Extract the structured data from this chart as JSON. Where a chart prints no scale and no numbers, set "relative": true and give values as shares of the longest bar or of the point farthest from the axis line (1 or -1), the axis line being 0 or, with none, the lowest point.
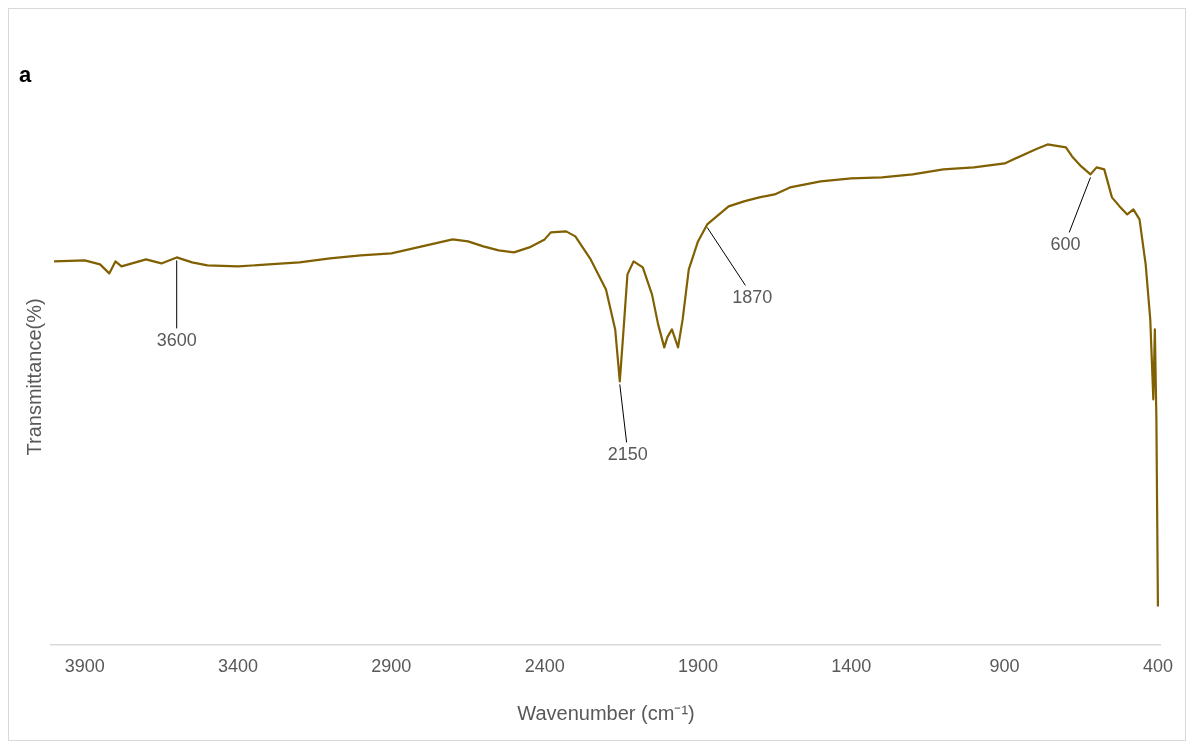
{
  "chart_data": {
    "type": "line",
    "title": "a",
    "xlabel": "Wavenumber (cm⁻¹)",
    "ylabel": "Transmittance(%)",
    "relative": true,
    "xlim": [
      4010,
      390
    ],
    "xticks": [
      3900,
      3400,
      2900,
      2400,
      1900,
      1400,
      900,
      400
    ],
    "grid": false,
    "legend": false,
    "marker": "none",
    "annotations": [
      {
        "text": "3600",
        "x": 3600,
        "y": 0.774
      },
      {
        "text": "2150",
        "x": 2155,
        "y": 0.526
      },
      {
        "text": "1870",
        "x": 1870,
        "y": 0.84
      },
      {
        "text": "600",
        "x": 620,
        "y": 0.94
      }
    ],
    "series": [
      {
        "color": "#806000",
        "x": [
          4000,
          3900,
          3850,
          3820,
          3800,
          3780,
          3700,
          3650,
          3600,
          3550,
          3500,
          3400,
          3300,
          3200,
          3100,
          3000,
          2900,
          2800,
          2700,
          2650,
          2600,
          2550,
          2500,
          2450,
          2400,
          2380,
          2330,
          2300,
          2250,
          2200,
          2170,
          2155,
          2145,
          2130,
          2110,
          2080,
          2050,
          2030,
          2010,
          2000,
          1985,
          1965,
          1950,
          1930,
          1900,
          1870,
          1800,
          1750,
          1700,
          1650,
          1600,
          1500,
          1400,
          1300,
          1200,
          1100,
          1000,
          900,
          800,
          760,
          700,
          680,
          650,
          620,
          600,
          575,
          550,
          525,
          500,
          480,
          460,
          440,
          425,
          415,
          410,
          405,
          400
        ],
        "values": [
          0.766,
          0.768,
          0.76,
          0.742,
          0.766,
          0.756,
          0.77,
          0.762,
          0.774,
          0.764,
          0.758,
          0.756,
          0.76,
          0.764,
          0.772,
          0.778,
          0.782,
          0.796,
          0.81,
          0.806,
          0.796,
          0.788,
          0.784,
          0.794,
          0.81,
          0.824,
          0.826,
          0.816,
          0.77,
          0.71,
          0.63,
          0.526,
          0.61,
          0.74,
          0.766,
          0.754,
          0.7,
          0.64,
          0.594,
          0.614,
          0.63,
          0.594,
          0.65,
          0.75,
          0.806,
          0.84,
          0.876,
          0.886,
          0.894,
          0.9,
          0.914,
          0.926,
          0.932,
          0.934,
          0.94,
          0.95,
          0.954,
          0.962,
          0.99,
          1,
          0.994,
          0.976,
          0.956,
          0.94,
          0.954,
          0.95,
          0.894,
          0.876,
          0.86,
          0.87,
          0.85,
          0.76,
          0.65,
          0.49,
          0.63,
          0.45,
          0.076
        ]
      }
    ]
  }
}
